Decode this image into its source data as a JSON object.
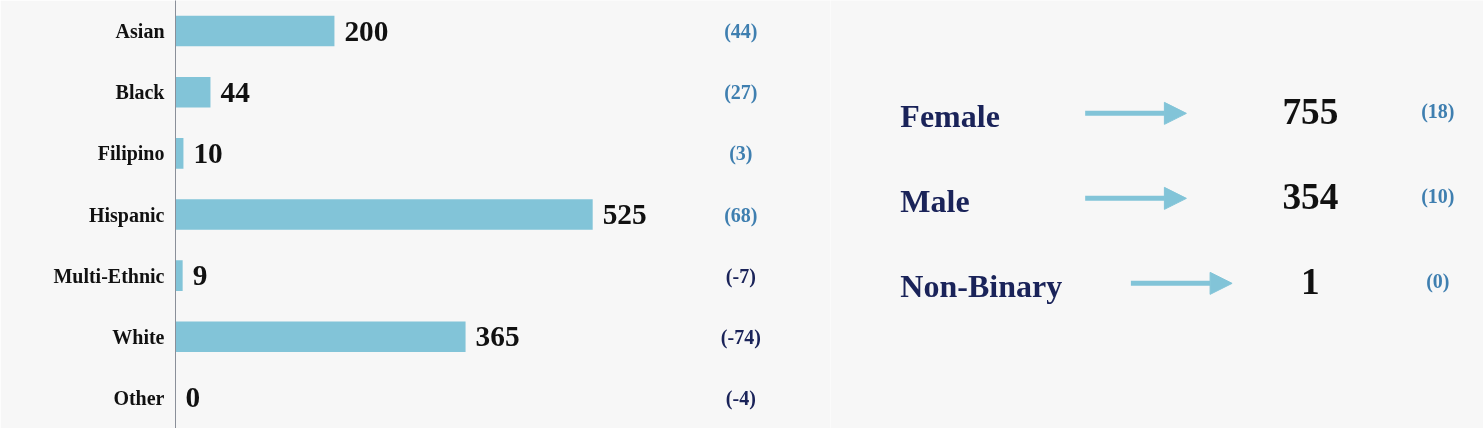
{
  "chart_data": [
    {
      "type": "bar",
      "orientation": "horizontal",
      "categories": [
        "Asian",
        "Black",
        "Filipino",
        "Hispanic",
        "Multi-Ethnic",
        "White",
        "Other"
      ],
      "values": [
        200,
        44,
        10,
        525,
        9,
        365,
        0
      ],
      "color": "#82c4d8",
      "data_labels": true,
      "annotations": [
        "(44)",
        "(27)",
        "(3)",
        "(68)",
        "(-7)",
        "(-74)",
        "(-4)"
      ]
    },
    {
      "type": "other",
      "categories": [
        "Female",
        "Male",
        "Non-Binary"
      ],
      "values": [
        755,
        354,
        1
      ],
      "data_labels": true,
      "annotations": [
        "(18)",
        "(10)",
        "(0)"
      ]
    }
  ]
}
